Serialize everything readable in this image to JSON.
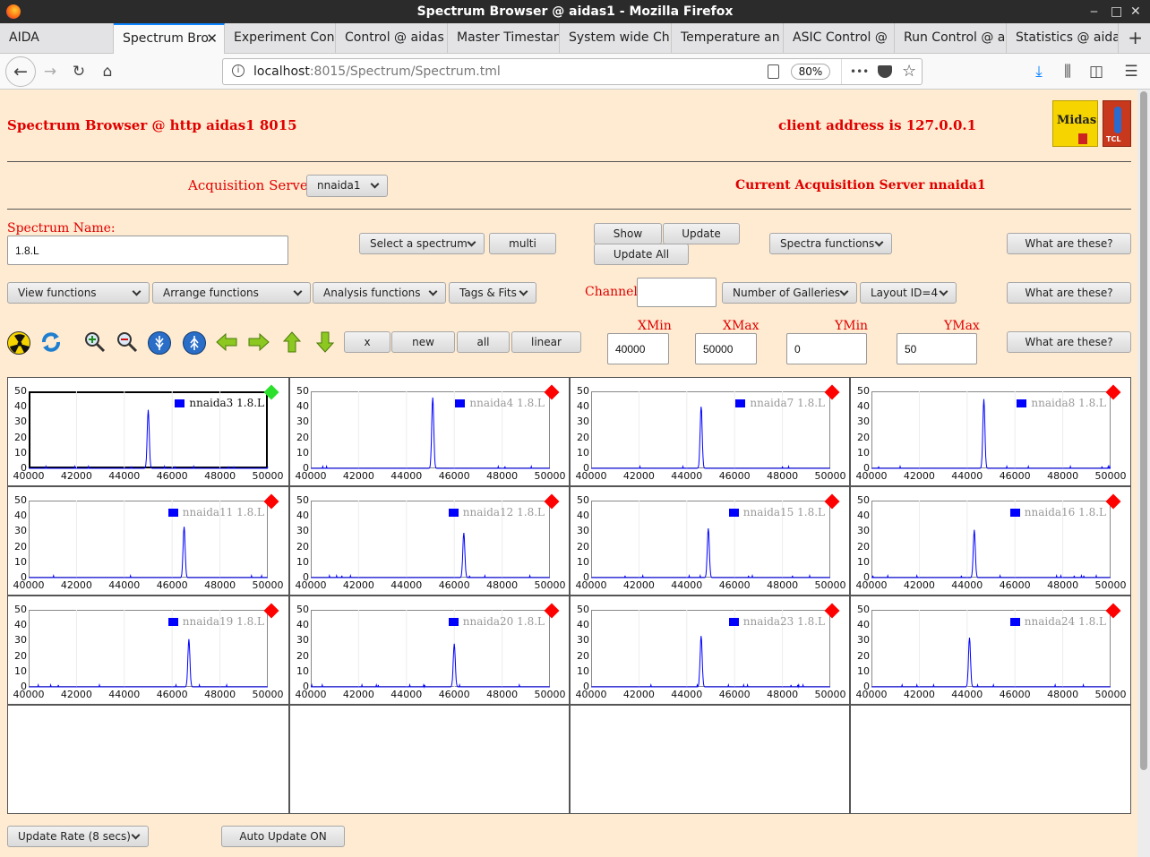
{
  "window": {
    "title": "Spectrum Browser @ aidas1 - Mozilla Firefox",
    "controls": [
      "‒",
      "□",
      "✕"
    ]
  },
  "tabs": [
    {
      "label": "AIDA",
      "active": false
    },
    {
      "label": "Spectrum Bro",
      "active": true
    },
    {
      "label": "Experiment Con",
      "active": false
    },
    {
      "label": "Control @ aidas",
      "active": false
    },
    {
      "label": "Master Timestan",
      "active": false
    },
    {
      "label": "System wide Ch",
      "active": false
    },
    {
      "label": "Temperature an",
      "active": false
    },
    {
      "label": "ASIC Control @",
      "active": false
    },
    {
      "label": "Run Control @ a",
      "active": false
    },
    {
      "label": "Statistics @ aida",
      "active": false
    }
  ],
  "tab_close": "✕",
  "tab_new": "+",
  "nav": {
    "url_host": "localhost",
    "url_rest": ":8015/Spectrum/Spectrum.tml",
    "zoom": "80%",
    "more": "•••"
  },
  "header": {
    "title": "Spectrum Browser @ http aidas1 8015",
    "client_address": "client address is 127.0.0.1",
    "logo_text": "Midas",
    "logo2_text": "TCL"
  },
  "acq": {
    "label": "Acquisition Servers",
    "selected": "nnaida1",
    "current": "Current Acquisition Server nnaida1"
  },
  "spectrum": {
    "name_label": "Spectrum Name:",
    "name_value": "1.8.L"
  },
  "buttons": {
    "select_spectrum": "Select a spectrum",
    "multi": "multi",
    "show": "Show",
    "update": "Update",
    "update_all": "Update All",
    "spectra_functions": "Spectra functions",
    "what1": "What are these?",
    "what2": "What are these?",
    "what3": "What are these?",
    "view_functions": "View functions",
    "arrange_functions": "Arrange functions",
    "analysis_functions": "Analysis functions",
    "tags_fits": "Tags & Fits",
    "number_galleries": "Number of Galleries",
    "layout": "Layout ID=4",
    "x": "x",
    "new": "new",
    "all": "all",
    "linear": "linear",
    "update_rate": "Update Rate (8 secs)",
    "auto_update": "Auto Update ON"
  },
  "channel": {
    "label": "Channel:",
    "value": ""
  },
  "range": {
    "xmin_label": "XMin",
    "xmax_label": "XMax",
    "ymin_label": "YMin",
    "ymax_label": "YMax",
    "xmin": "40000",
    "xmax": "50000",
    "ymin": "0",
    "ymax": "50"
  },
  "icons": [
    "radiation-icon",
    "refresh-icon",
    "zoom-in-icon",
    "zoom-out-icon",
    "expand-vertical-icon",
    "compress-vertical-icon",
    "arrow-left-icon",
    "arrow-right-icon",
    "arrow-up-icon",
    "arrow-down-icon"
  ],
  "colors": {
    "page_bg": "#ffebd1",
    "label_red": "#e00000",
    "series": "#0000ff",
    "status_bad": "#ff0000",
    "status_ok": "#2ae02a"
  },
  "chart_data": [
    {
      "type": "line",
      "series": [
        {
          "name": "nnaida3 1.8.L",
          "peak_x": 45000,
          "peak_y": 38
        }
      ],
      "ylim": [
        0,
        50
      ],
      "xlim": [
        40000,
        50000
      ],
      "yticks": [
        "50",
        "40",
        "30",
        "20",
        "10",
        "0"
      ],
      "xticks": [
        "40000",
        "42000",
        "44000",
        "46000",
        "48000",
        "50000"
      ],
      "selected": true,
      "status": "ok"
    },
    {
      "type": "line",
      "series": [
        {
          "name": "nnaida4 1.8.L",
          "peak_x": 45100,
          "peak_y": 46
        }
      ],
      "ylim": [
        0,
        50
      ],
      "xlim": [
        40000,
        50000
      ],
      "yticks": [
        "50",
        "40",
        "30",
        "20",
        "10",
        "0"
      ],
      "xticks": [
        "40000",
        "42000",
        "44000",
        "46000",
        "48000",
        "50000"
      ],
      "selected": false,
      "status": "bad"
    },
    {
      "type": "line",
      "series": [
        {
          "name": "nnaida7 1.8.L",
          "peak_x": 44600,
          "peak_y": 40
        }
      ],
      "ylim": [
        0,
        50
      ],
      "xlim": [
        40000,
        50000
      ],
      "yticks": [
        "50",
        "40",
        "30",
        "20",
        "10",
        "0"
      ],
      "xticks": [
        "40000",
        "42000",
        "44000",
        "46000",
        "48000",
        "50000"
      ],
      "selected": false,
      "status": "bad"
    },
    {
      "type": "line",
      "series": [
        {
          "name": "nnaida8 1.8.L",
          "peak_x": 44700,
          "peak_y": 45
        }
      ],
      "ylim": [
        0,
        50
      ],
      "xlim": [
        40000,
        50000
      ],
      "yticks": [
        "50",
        "40",
        "30",
        "20",
        "10",
        "0"
      ],
      "xticks": [
        "40000",
        "42000",
        "44000",
        "46000",
        "48000",
        "50000"
      ],
      "selected": false,
      "status": "bad"
    },
    {
      "type": "line",
      "series": [
        {
          "name": "nnaida11 1.8.L",
          "peak_x": 46500,
          "peak_y": 33
        }
      ],
      "ylim": [
        0,
        50
      ],
      "xlim": [
        40000,
        50000
      ],
      "yticks": [
        "50",
        "40",
        "30",
        "20",
        "10",
        "0"
      ],
      "xticks": [
        "40000",
        "42000",
        "44000",
        "46000",
        "48000",
        "50000"
      ],
      "selected": false,
      "status": "bad"
    },
    {
      "type": "line",
      "series": [
        {
          "name": "nnaida12 1.8.L",
          "peak_x": 46400,
          "peak_y": 29
        }
      ],
      "ylim": [
        0,
        50
      ],
      "xlim": [
        40000,
        50000
      ],
      "yticks": [
        "50",
        "40",
        "30",
        "20",
        "10",
        "0"
      ],
      "xticks": [
        "40000",
        "42000",
        "44000",
        "46000",
        "48000",
        "50000"
      ],
      "selected": false,
      "status": "bad"
    },
    {
      "type": "line",
      "series": [
        {
          "name": "nnaida15 1.8.L",
          "peak_x": 44900,
          "peak_y": 32
        }
      ],
      "ylim": [
        0,
        50
      ],
      "xlim": [
        40000,
        50000
      ],
      "yticks": [
        "50",
        "40",
        "30",
        "20",
        "10",
        "0"
      ],
      "xticks": [
        "40000",
        "42000",
        "44000",
        "46000",
        "48000",
        "50000"
      ],
      "selected": false,
      "status": "bad"
    },
    {
      "type": "line",
      "series": [
        {
          "name": "nnaida16 1.8.L",
          "peak_x": 44300,
          "peak_y": 31
        }
      ],
      "ylim": [
        0,
        50
      ],
      "xlim": [
        40000,
        50000
      ],
      "yticks": [
        "50",
        "40",
        "30",
        "20",
        "10",
        "0"
      ],
      "xticks": [
        "40000",
        "42000",
        "44000",
        "46000",
        "48000",
        "50000"
      ],
      "selected": false,
      "status": "bad"
    },
    {
      "type": "line",
      "series": [
        {
          "name": "nnaida19 1.8.L",
          "peak_x": 46700,
          "peak_y": 31
        }
      ],
      "ylim": [
        0,
        50
      ],
      "xlim": [
        40000,
        50000
      ],
      "yticks": [
        "50",
        "40",
        "30",
        "20",
        "10",
        "0"
      ],
      "xticks": [
        "40000",
        "42000",
        "44000",
        "46000",
        "48000",
        "50000"
      ],
      "selected": false,
      "status": "bad"
    },
    {
      "type": "line",
      "series": [
        {
          "name": "nnaida20 1.8.L",
          "peak_x": 46000,
          "peak_y": 28
        }
      ],
      "ylim": [
        0,
        50
      ],
      "xlim": [
        40000,
        50000
      ],
      "yticks": [
        "50",
        "40",
        "30",
        "20",
        "10",
        "0"
      ],
      "xticks": [
        "40000",
        "42000",
        "44000",
        "46000",
        "48000",
        "50000"
      ],
      "selected": false,
      "status": "bad"
    },
    {
      "type": "line",
      "series": [
        {
          "name": "nnaida23 1.8.L",
          "peak_x": 44600,
          "peak_y": 33
        }
      ],
      "ylim": [
        0,
        50
      ],
      "xlim": [
        40000,
        50000
      ],
      "yticks": [
        "50",
        "40",
        "30",
        "20",
        "10",
        "0"
      ],
      "xticks": [
        "40000",
        "42000",
        "44000",
        "46000",
        "48000",
        "50000"
      ],
      "selected": false,
      "status": "bad"
    },
    {
      "type": "line",
      "series": [
        {
          "name": "nnaida24 1.8.L",
          "peak_x": 44100,
          "peak_y": 32
        }
      ],
      "ylim": [
        0,
        50
      ],
      "xlim": [
        40000,
        50000
      ],
      "yticks": [
        "50",
        "40",
        "30",
        "20",
        "10",
        "0"
      ],
      "xticks": [
        "40000",
        "42000",
        "44000",
        "46000",
        "48000",
        "50000"
      ],
      "selected": false,
      "status": "bad"
    }
  ]
}
